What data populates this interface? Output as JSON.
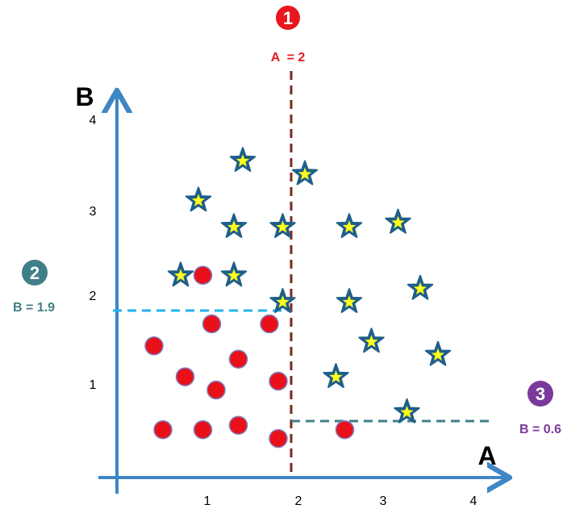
{
  "axes": {
    "x_label": "A",
    "y_label": "B",
    "x_ticks": [
      "1",
      "2",
      "3",
      "4"
    ],
    "y_ticks": [
      "1",
      "2",
      "3",
      "4"
    ],
    "axis_color": "#3f86c4"
  },
  "splits": [
    {
      "number": "1",
      "badge": "❶",
      "label": "A  = 2",
      "color": "#e8171d",
      "line_color": "#7a2a1e"
    },
    {
      "number": "2",
      "badge": "❷",
      "label": "B = 1.9",
      "color": "#3f7f88",
      "line_color": "#1fb4ec"
    },
    {
      "number": "3",
      "badge": "❸",
      "label": "B = 0.6",
      "color": "#7a3a9c",
      "line_color": "#3f7f88"
    }
  ],
  "colors": {
    "circle_fill": "#e8111a",
    "circle_stroke": "#7f7fc0",
    "star_fill": "#ffff1a",
    "star_stroke": "#1f5e8a"
  },
  "chart_data": {
    "type": "scatter",
    "xlim": [
      0,
      4.2
    ],
    "ylim": [
      0,
      4.2
    ],
    "series": [
      {
        "marker": "circle",
        "points": [
          {
            "x": 0.5,
            "y": 0.5
          },
          {
            "x": 0.95,
            "y": 0.5
          },
          {
            "x": 1.35,
            "y": 0.55
          },
          {
            "x": 1.8,
            "y": 0.4
          },
          {
            "x": 2.55,
            "y": 0.5
          },
          {
            "x": 1.1,
            "y": 0.95
          },
          {
            "x": 0.75,
            "y": 1.1
          },
          {
            "x": 1.35,
            "y": 1.3
          },
          {
            "x": 1.8,
            "y": 1.05
          },
          {
            "x": 0.4,
            "y": 1.45
          },
          {
            "x": 1.05,
            "y": 1.7
          },
          {
            "x": 1.7,
            "y": 1.7
          },
          {
            "x": 0.95,
            "y": 2.25
          }
        ]
      },
      {
        "marker": "star",
        "points": [
          {
            "x": 1.4,
            "y": 3.55
          },
          {
            "x": 2.1,
            "y": 3.4
          },
          {
            "x": 0.9,
            "y": 3.1
          },
          {
            "x": 1.3,
            "y": 2.8
          },
          {
            "x": 1.85,
            "y": 2.8
          },
          {
            "x": 2.6,
            "y": 2.8
          },
          {
            "x": 3.15,
            "y": 2.85
          },
          {
            "x": 0.7,
            "y": 2.25
          },
          {
            "x": 1.3,
            "y": 2.25
          },
          {
            "x": 1.85,
            "y": 1.95
          },
          {
            "x": 2.6,
            "y": 1.95
          },
          {
            "x": 3.4,
            "y": 2.1
          },
          {
            "x": 2.85,
            "y": 1.5
          },
          {
            "x": 3.6,
            "y": 1.35
          },
          {
            "x": 2.45,
            "y": 1.1
          },
          {
            "x": 3.25,
            "y": 0.7
          }
        ]
      }
    ],
    "threshold_lines": [
      {
        "orientation": "vertical",
        "x": 2,
        "y_from": 0,
        "y_to": 4.55
      },
      {
        "orientation": "horizontal",
        "y": 1.9,
        "x_from": 0,
        "x_to": 2
      },
      {
        "orientation": "horizontal",
        "y": 0.6,
        "x_from": 2,
        "x_to": 4.2
      }
    ]
  }
}
